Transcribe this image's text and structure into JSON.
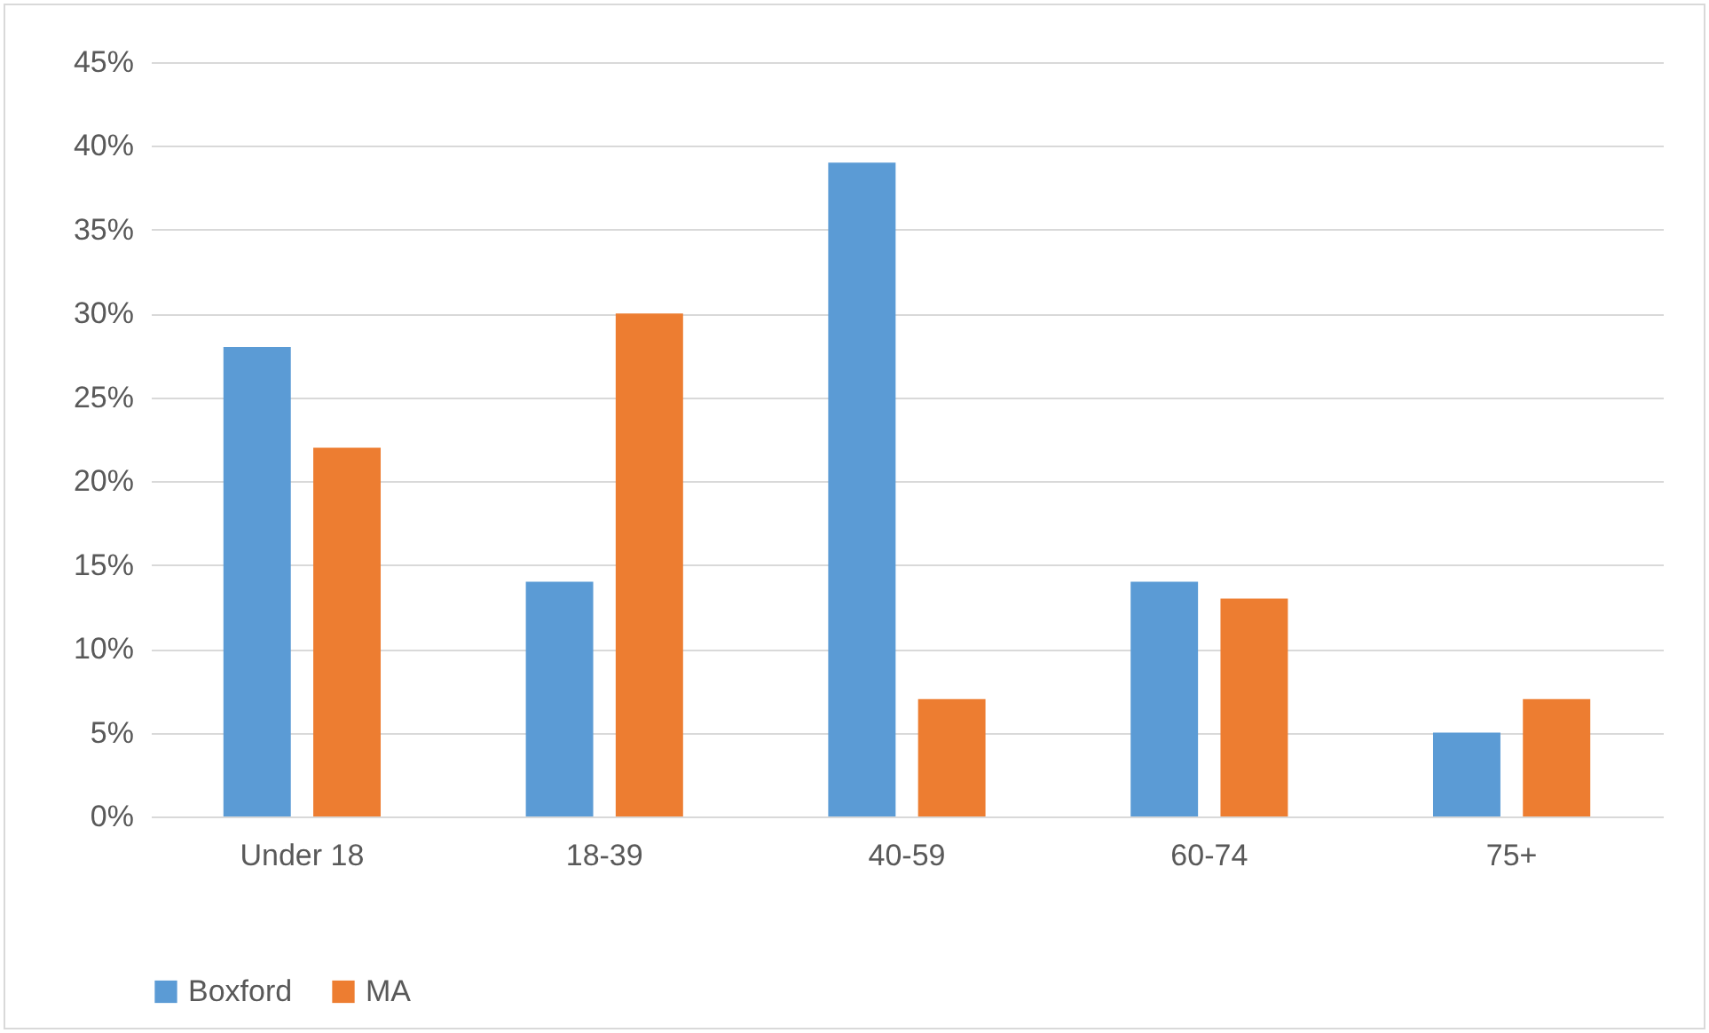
{
  "chart_data": {
    "type": "bar",
    "categories": [
      "Under 18",
      "18-39",
      "40-59",
      "60-74",
      "75+"
    ],
    "series": [
      {
        "name": "Boxford",
        "color": "#5b9bd5",
        "values": [
          28,
          14,
          39,
          14,
          5
        ]
      },
      {
        "name": "MA",
        "color": "#ed7d31",
        "values": [
          22,
          30,
          7,
          13,
          7
        ]
      }
    ],
    "ylim": [
      0,
      45
    ],
    "yticks": [
      {
        "value": 0,
        "label": "0%"
      },
      {
        "value": 5,
        "label": "5%"
      },
      {
        "value": 10,
        "label": "10%"
      },
      {
        "value": 15,
        "label": "15%"
      },
      {
        "value": 20,
        "label": "20%"
      },
      {
        "value": 25,
        "label": "25%"
      },
      {
        "value": 30,
        "label": "30%"
      },
      {
        "value": 35,
        "label": "35%"
      },
      {
        "value": 40,
        "label": "40%"
      },
      {
        "value": 45,
        "label": "45%"
      }
    ],
    "grid": "y",
    "legend": "bottom"
  }
}
